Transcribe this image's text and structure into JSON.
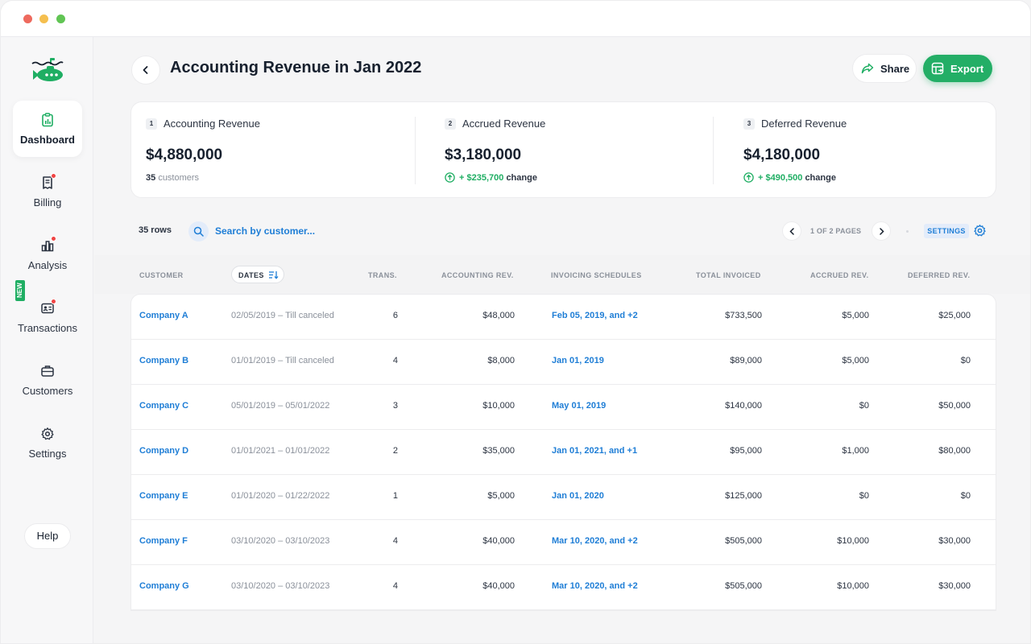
{
  "window": {
    "controls": {
      "close_color": "#ee6a5e",
      "minimize_color": "#f5bf4f",
      "maximize_color": "#61c554"
    }
  },
  "colors": {
    "accent_green": "#23ae66",
    "link_blue": "#1f7ed6",
    "alert_red": "#ef4444"
  },
  "sidebar": {
    "logo": "submarine-logo-icon",
    "items": [
      {
        "label": "Dashboard",
        "icon": "clipboard-chart-icon",
        "active": true,
        "notification": false
      },
      {
        "label": "Billing",
        "icon": "receipt-icon",
        "active": false,
        "notification": true
      },
      {
        "label": "Analysis",
        "icon": "bar-chart-icon",
        "active": false,
        "notification": true
      },
      {
        "label": "Transactions",
        "icon": "id-card-icon",
        "active": false,
        "notification": true
      },
      {
        "label": "Customers",
        "icon": "briefcase-icon",
        "active": false,
        "notification": false
      },
      {
        "label": "Settings",
        "icon": "gear-icon",
        "active": false,
        "notification": false
      }
    ],
    "new_badge": "NEW",
    "help_label": "Help"
  },
  "header": {
    "title": "Accounting Revenue in Jan 2022",
    "share_label": "Share",
    "export_label": "Export"
  },
  "stats": [
    {
      "num": "1",
      "title": "Accounting Revenue",
      "value": "$4,880,000",
      "sub_count": "35",
      "sub_text": "customers"
    },
    {
      "num": "2",
      "title": "Accrued Revenue",
      "value": "$3,180,000",
      "change": "+ $235,700",
      "change_word": "change"
    },
    {
      "num": "3",
      "title": "Deferred Revenue",
      "value": "$4,180,000",
      "change": "+ $490,500",
      "change_word": "change"
    }
  ],
  "toolbar": {
    "rows": "35 rows",
    "search_placeholder": "Search by customer...",
    "page_info": "1 OF 2 PAGES",
    "settings_label": "SETTINGS"
  },
  "table": {
    "columns": [
      "CUSTOMER",
      "DATES",
      "TRANS.",
      "ACCOUNTING REV.",
      "INVOICING SCHEDULES",
      "TOTAL INVOICED",
      "ACCRUED REV.",
      "DEFERRED REV."
    ],
    "rows": [
      {
        "customer": "Company A",
        "dates": "02/05/2019 – Till canceled",
        "trans": "6",
        "acc_rev": "$48,000",
        "schedule": "Feb 05, 2019, and +2",
        "total": "$733,500",
        "accrued": "$5,000",
        "deferred": "$25,000"
      },
      {
        "customer": "Company B",
        "dates": "01/01/2019 – Till canceled",
        "trans": "4",
        "acc_rev": "$8,000",
        "schedule": "Jan 01, 2019",
        "total": "$89,000",
        "accrued": "$5,000",
        "deferred": "$0"
      },
      {
        "customer": "Company C",
        "dates": "05/01/2019 – 05/01/2022",
        "trans": "3",
        "acc_rev": "$10,000",
        "schedule": "May 01, 2019",
        "total": "$140,000",
        "accrued": "$0",
        "deferred": "$50,000"
      },
      {
        "customer": "Company D",
        "dates": "01/01/2021 – 01/01/2022",
        "trans": "2",
        "acc_rev": "$35,000",
        "schedule": "Jan 01, 2021, and +1",
        "total": "$95,000",
        "accrued": "$1,000",
        "deferred": "$80,000"
      },
      {
        "customer": "Company E",
        "dates": "01/01/2020 – 01/22/2022",
        "trans": "1",
        "acc_rev": "$5,000",
        "schedule": "Jan 01, 2020",
        "total": "$125,000",
        "accrued": "$0",
        "deferred": "$0"
      },
      {
        "customer": "Company F",
        "dates": "03/10/2020 – 03/10/2023",
        "trans": "4",
        "acc_rev": "$40,000",
        "schedule": "Mar 10, 2020, and +2",
        "total": "$505,000",
        "accrued": "$10,000",
        "deferred": "$30,000"
      },
      {
        "customer": "Company G",
        "dates": "03/10/2020 – 03/10/2023",
        "trans": "4",
        "acc_rev": "$40,000",
        "schedule": "Mar 10, 2020, and +2",
        "total": "$505,000",
        "accrued": "$10,000",
        "deferred": "$30,000"
      }
    ]
  }
}
